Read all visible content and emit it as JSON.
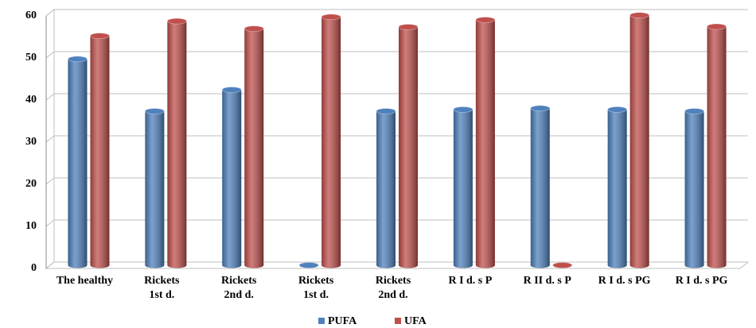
{
  "chart_data": {
    "type": "bar",
    "categories": [
      "The healthy",
      "Rickets\n1st d.",
      "Rickets\n2nd d.",
      "Rickets\n1st d.",
      "Rickets\n2nd d.",
      "R I d. s P",
      "R II d. s P",
      "R I d. s PG",
      "R I d. s PG"
    ],
    "series": [
      {
        "name": "PUFA",
        "color": "#4f81bd",
        "values": [
          49,
          36.6,
          41.7,
          0,
          36.6,
          37,
          37.3,
          37,
          36.6
        ]
      },
      {
        "name": "UFA",
        "color": "#c0504d",
        "values": [
          54.5,
          58,
          56.2,
          59,
          56.6,
          58.3,
          0,
          59.4,
          56.7
        ]
      }
    ],
    "ylim": [
      0,
      60
    ],
    "yticks": [
      0,
      10,
      20,
      30,
      40,
      50,
      60
    ],
    "grid": true,
    "legend": "bottom"
  }
}
